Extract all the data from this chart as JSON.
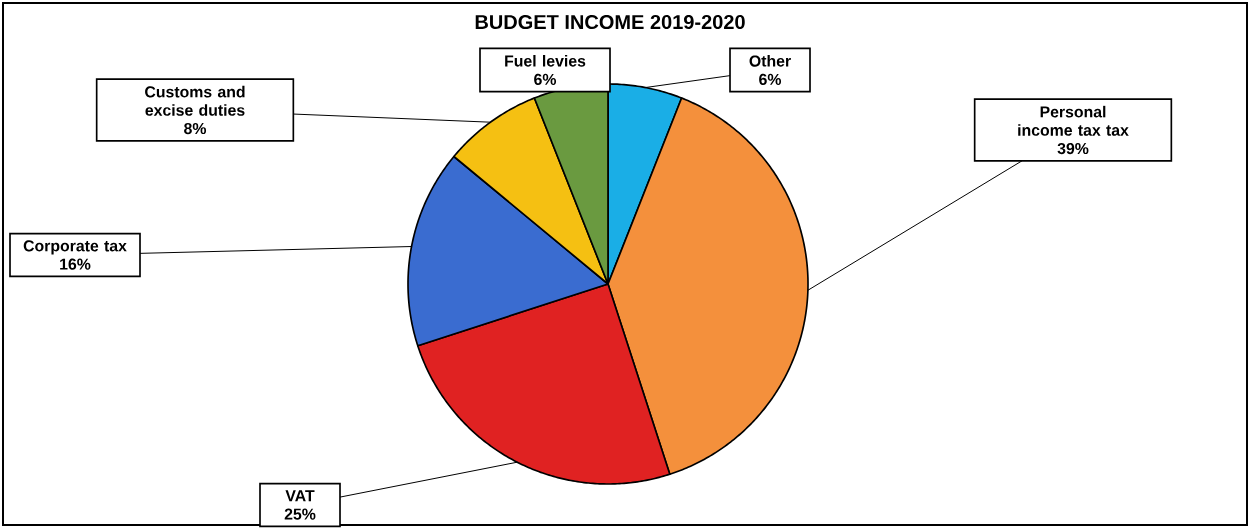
{
  "chart_data": {
    "type": "pie",
    "title": "BUDGET INCOME 2019-2020",
    "categories": [
      "Other",
      "Personal income tax tax",
      "VAT",
      "Corporate tax",
      "Customs and excise duties",
      "Fuel levies"
    ],
    "values": [
      6,
      39,
      25,
      16,
      8,
      6
    ],
    "colors": [
      "#1aaee6",
      "#f4903c",
      "#e02222",
      "#3a6cd0",
      "#f5c012",
      "#6a9a40"
    ],
    "value_labels": [
      "6%",
      "39%",
      "25%",
      "16%",
      "8%",
      "6%"
    ]
  }
}
